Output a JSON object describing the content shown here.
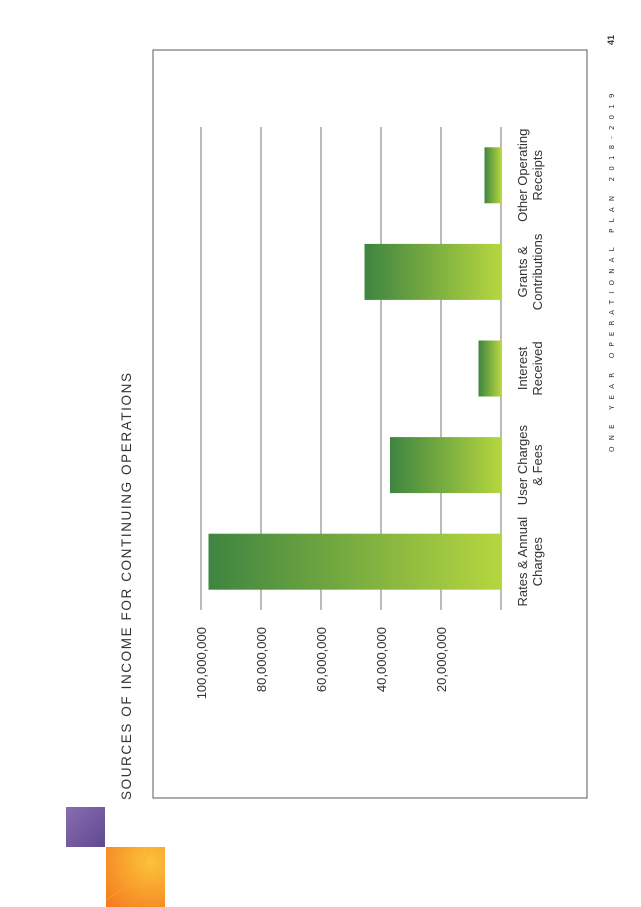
{
  "page": {
    "footer": "ONE YEAR OPERATIONAL PLAN 2018-2019",
    "page_number": "41"
  },
  "colors": {
    "bar_dark": "#3e8441",
    "bar_light": "#b6d63f",
    "frame": "#5a5a5a",
    "grid": "#777777",
    "text": "#333333",
    "logo_purple_a": "#8a6cb3",
    "logo_purple_b": "#5e4a8e",
    "logo_orange_a": "#fcc33a",
    "logo_orange_b": "#f47d20"
  },
  "chart_data": {
    "type": "bar",
    "orientation": "page rotated 90 degrees counter-clockwise",
    "title": "SOURCES OF INCOME FOR CONTINUING OPERATIONS",
    "categories": [
      "Rates & Annual Charges",
      "User Charges & Fees",
      "Interest Received",
      "Grants & Contributions",
      "Other Operating Receipts"
    ],
    "category_lines": [
      [
        "Rates & Annual",
        "Charges"
      ],
      [
        "User Charges",
        "& Fees"
      ],
      [
        "Interest",
        "Received"
      ],
      [
        "Grants &",
        "Contributions"
      ],
      [
        "Other Operating",
        "Receipts"
      ]
    ],
    "values": [
      97500000,
      37000000,
      7500000,
      45500000,
      5500000
    ],
    "ylim": [
      0,
      100000000
    ],
    "yticks": [
      20000000,
      40000000,
      60000000,
      80000000,
      100000000
    ],
    "ytick_labels": [
      "20,000,000",
      "40,000,000",
      "60,000,000",
      "80,000,000",
      "100,000,000"
    ],
    "grid": true,
    "legend": false,
    "xlabel": "",
    "ylabel": ""
  }
}
